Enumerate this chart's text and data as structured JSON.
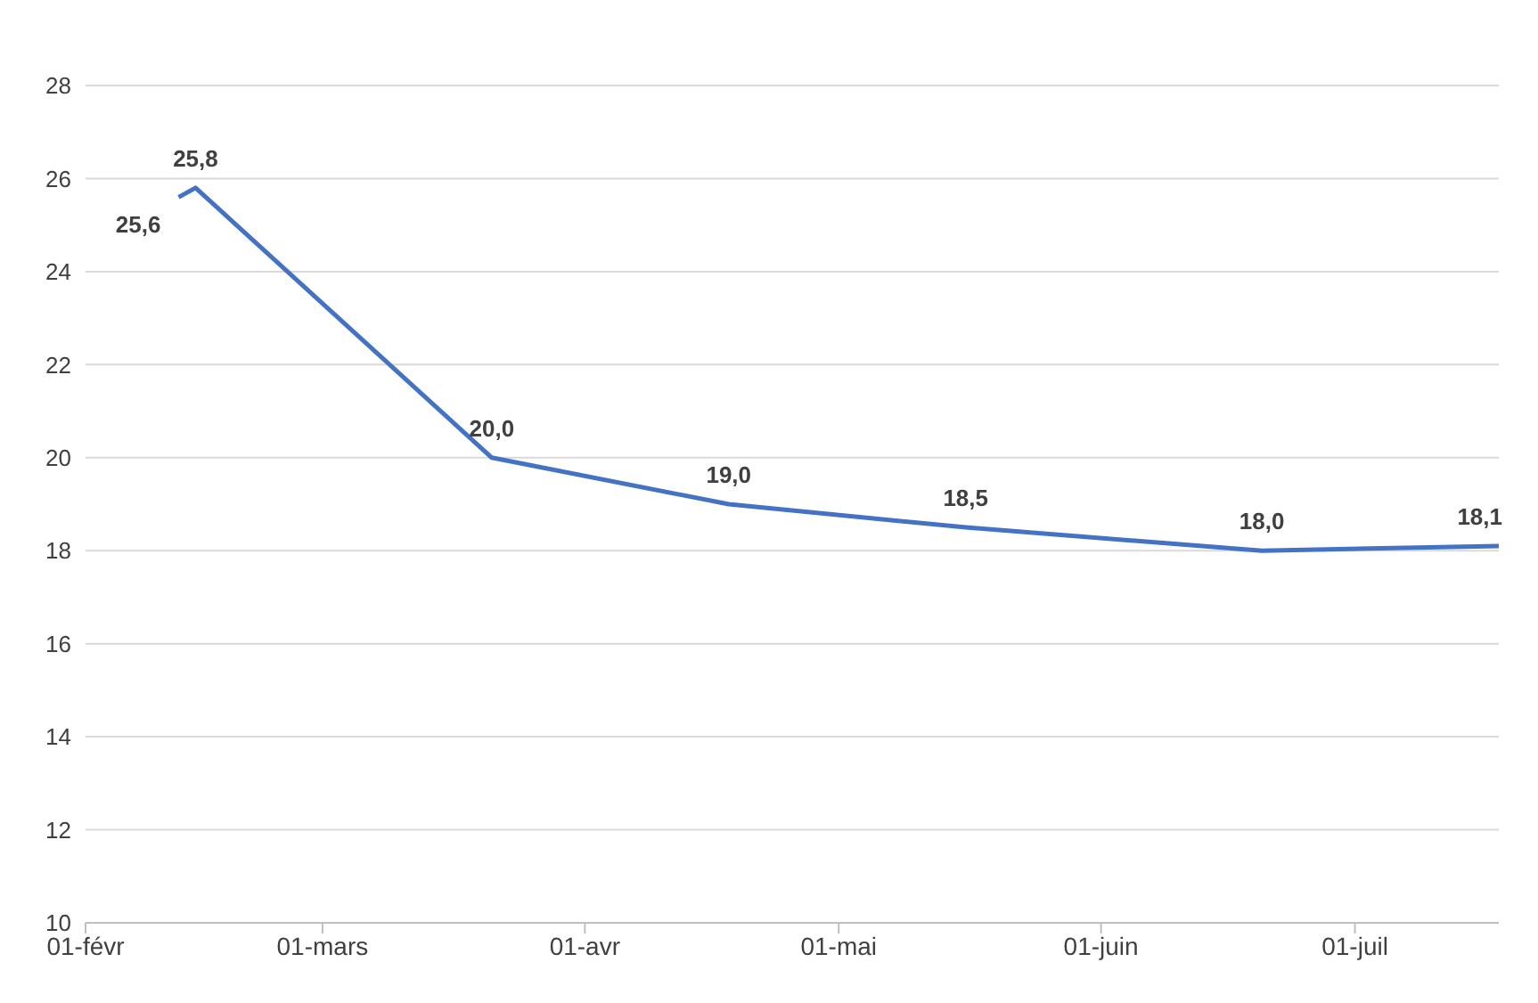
{
  "chart_data": {
    "type": "line",
    "x": [
      "--02-12",
      "--02-14",
      "--03-21",
      "--04-18",
      "--05-16",
      "--06-20",
      "--07-18"
    ],
    "values": [
      25.6,
      25.8,
      20.0,
      19.0,
      18.5,
      18.0,
      18.1
    ],
    "value_labels": [
      "25,6",
      "25,8",
      "20,0",
      "19,0",
      "18,5",
      "18,0",
      "18,1"
    ],
    "color": "#4472c4",
    "xlim": [
      "--02-01",
      "--07-18"
    ],
    "xticks": [
      {
        "value": "--02-01",
        "label": "01-févr"
      },
      {
        "value": "--03-01",
        "label": "01-mars"
      },
      {
        "value": "--04-01",
        "label": "01-avr"
      },
      {
        "value": "--05-01",
        "label": "01-mai"
      },
      {
        "value": "--06-01",
        "label": "01-juin"
      },
      {
        "value": "--07-01",
        "label": "01-juil"
      }
    ],
    "ylim": [
      10,
      28
    ],
    "yticks": [
      10,
      12,
      14,
      16,
      18,
      20,
      22,
      24,
      26,
      28
    ],
    "grid": "y",
    "marker": "none",
    "line_style": "solid",
    "legend": false
  }
}
